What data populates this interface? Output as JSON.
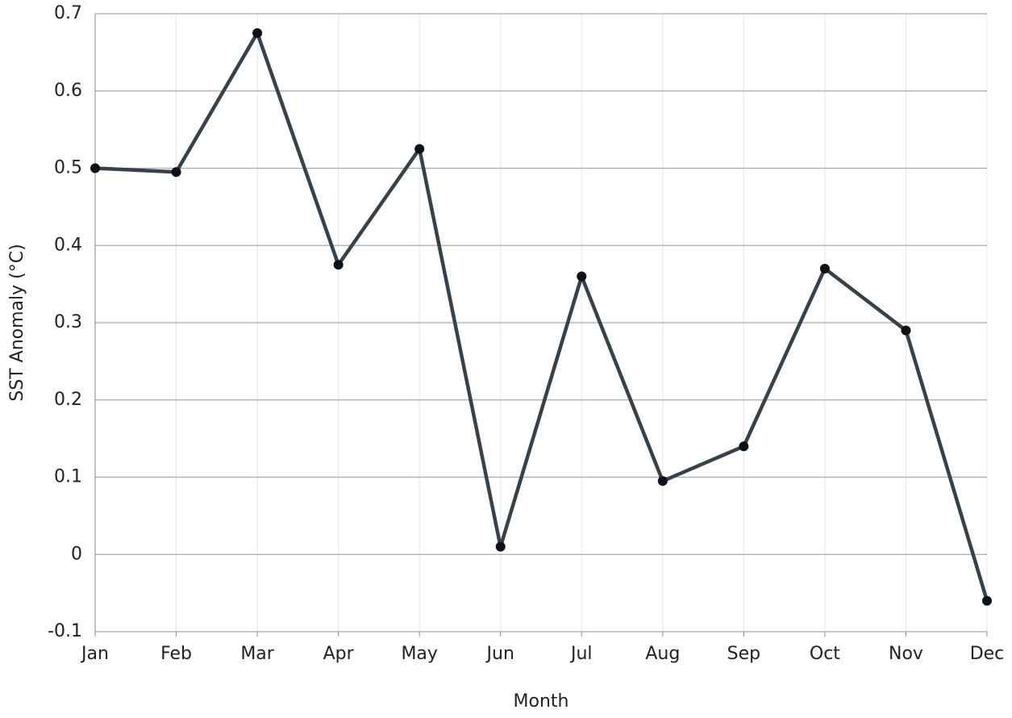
{
  "chart_data": {
    "type": "line",
    "x_label": "Month",
    "y_label": "SST Anomaly (°C)",
    "categories": [
      "Jan",
      "Feb",
      "Mar",
      "Apr",
      "May",
      "Jun",
      "Jul",
      "Aug",
      "Sep",
      "Oct",
      "Nov",
      "Dec"
    ],
    "series": [
      {
        "color": "#37414a",
        "values": [
          0.5,
          0.495,
          0.675,
          0.375,
          0.525,
          0.01,
          0.36,
          0.095,
          0.14,
          0.37,
          0.29,
          -0.06
        ]
      }
    ],
    "ylim": [
      -0.1,
      0.7
    ],
    "yticks": [
      -0.1,
      0,
      0.1,
      0.2,
      0.3,
      0.4,
      0.5,
      0.6,
      0.7
    ],
    "grid": true
  }
}
